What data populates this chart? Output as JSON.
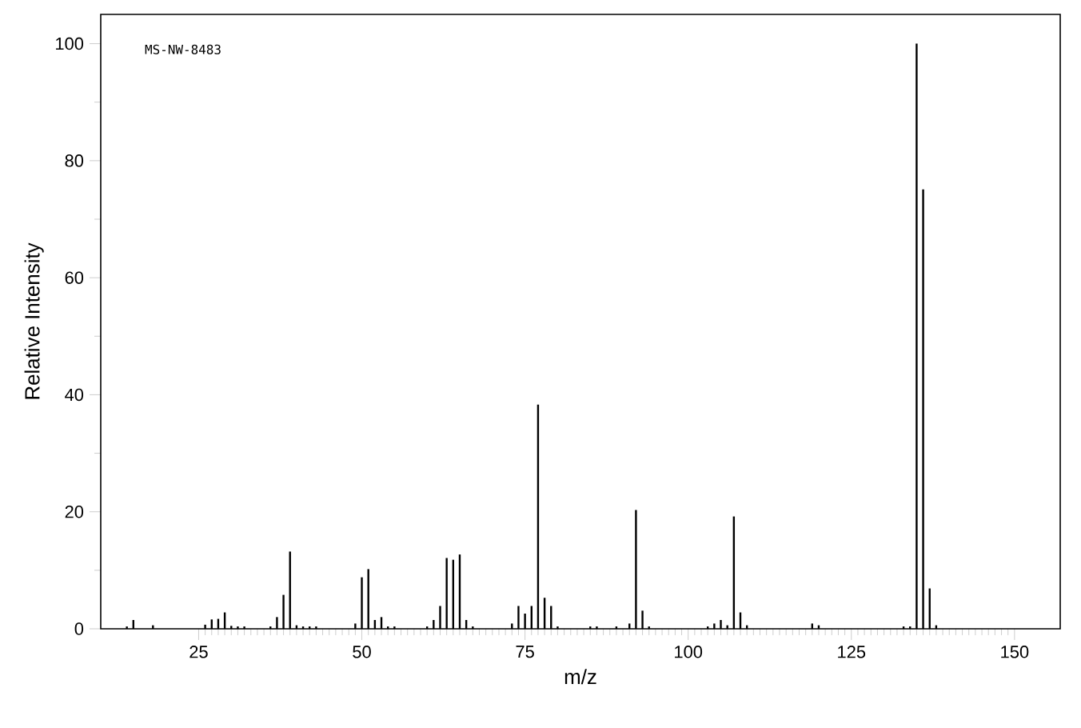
{
  "chart_data": {
    "type": "bar",
    "xlabel": "m/z",
    "ylabel": "Relative Intensity",
    "annotations": [
      "MS-NW-8483"
    ],
    "x": [
      14,
      15,
      18,
      26,
      27,
      28,
      29,
      30,
      31,
      32,
      36,
      37,
      38,
      39,
      40,
      41,
      42,
      43,
      49,
      50,
      51,
      52,
      53,
      54,
      55,
      60,
      61,
      62,
      63,
      64,
      65,
      66,
      67,
      73,
      74,
      75,
      76,
      77,
      78,
      79,
      80,
      85,
      86,
      89,
      91,
      92,
      93,
      94,
      103,
      104,
      105,
      106,
      107,
      108,
      109,
      119,
      120,
      133,
      134,
      135,
      136,
      137,
      138
    ],
    "values": [
      0.4,
      1.5,
      0.6,
      0.7,
      1.6,
      1.7,
      2.8,
      0.5,
      0.4,
      0.4,
      0.4,
      2.0,
      5.8,
      13.2,
      0.6,
      0.4,
      0.4,
      0.4,
      0.9,
      8.8,
      10.2,
      1.5,
      2.0,
      0.4,
      0.4,
      0.4,
      1.5,
      3.9,
      12.1,
      11.8,
      12.7,
      1.5,
      0.4,
      0.9,
      3.9,
      2.6,
      3.9,
      38.3,
      5.3,
      3.9,
      0.4,
      0.4,
      0.4,
      0.4,
      0.9,
      20.3,
      3.1,
      0.4,
      0.4,
      0.9,
      1.5,
      0.6,
      19.2,
      2.8,
      0.6,
      0.9,
      0.6,
      0.4,
      0.4,
      100,
      75.1,
      6.9,
      0.6
    ],
    "color": "#000000",
    "xlim": [
      10,
      157
    ],
    "xticks": [
      25,
      50,
      75,
      100,
      125,
      150
    ],
    "ylim": [
      0,
      105
    ],
    "yticks": [
      0,
      20,
      40,
      60,
      80,
      100
    ],
    "grid": false
  }
}
